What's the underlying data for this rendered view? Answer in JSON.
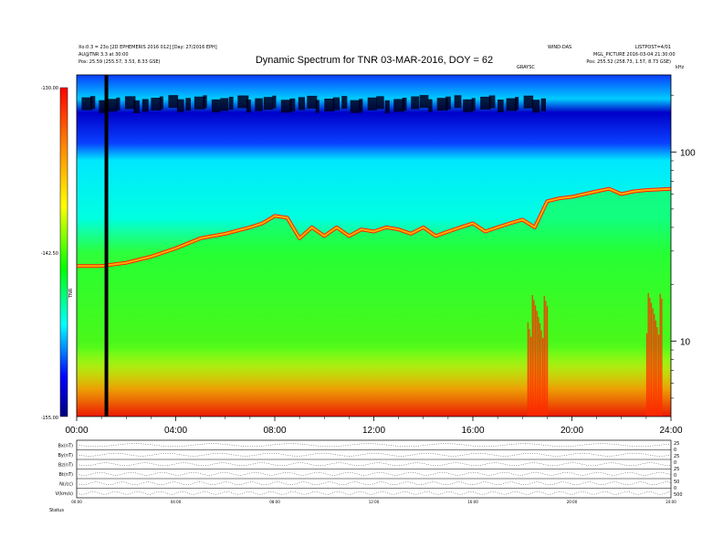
{
  "header": {
    "title": "Dynamic Spectrum for TNR 03-MAR-2016, DOY = 62",
    "left_line1": "Xo:0.3 = 23o [2D EPHEMERIS 2016 012] [Day: 27/2016 EPH]",
    "left_line2": "AU@TNR 3.3 at 30:00",
    "left_line3": "Pos:    25.59 (255.57, 3.53, 8.33 GSE)",
    "right_line1": "WIND-DAS",
    "right_line2": "LISTPOST=4/01",
    "right_line3": "MGL_PICTURE 2016-03-04 21:30:00",
    "right_line4": "Pos:   255.52 (258.73, 1.57, 8.73 GSE)",
    "right_top_label": "GRAYSC",
    "corner_label": "kHz"
  },
  "chart_data": {
    "type": "heatmap",
    "title": "Dynamic Spectrum for TNR 03-MAR-2016, DOY = 62",
    "x_ticks": [
      "00:00",
      "04:00",
      "08:00",
      "12:00",
      "16:00",
      "20:00",
      "24:00"
    ],
    "x_range_hours": [
      0,
      24
    ],
    "y_axis": {
      "scale": "log",
      "unit": "kHz",
      "range": [
        4,
        256
      ],
      "ticks": [
        10,
        100
      ]
    },
    "colorbar": {
      "label": "TNR",
      "range": [
        -155.0,
        -130.0
      ],
      "ticks": [
        "-130.00",
        "-142.50",
        "-155.00"
      ],
      "colors": [
        "#ff0000",
        "#ff8800",
        "#ffff00",
        "#00ff00",
        "#00ffff",
        "#0000ff",
        "#000080"
      ]
    },
    "plasma_line": {
      "description_free": true,
      "time_h": [
        0,
        1,
        2,
        3,
        4,
        5,
        6,
        7,
        7.5,
        8,
        8.5,
        9,
        9.5,
        10,
        10.5,
        11,
        11.5,
        12,
        12.5,
        13,
        13.5,
        14,
        14.5,
        15,
        15.5,
        16,
        16.5,
        17,
        17.5,
        18,
        18.5,
        19,
        19.5,
        20,
        20.5,
        21,
        21.5,
        22,
        22.5,
        23,
        24
      ],
      "freq_khz": [
        25,
        25,
        26,
        28,
        31,
        35,
        37,
        40,
        42,
        46,
        45,
        35,
        40,
        36,
        40,
        36,
        39,
        38,
        40,
        39,
        37,
        40,
        36,
        38,
        40,
        42,
        38,
        40,
        42,
        44,
        40,
        55,
        57,
        58,
        60,
        62,
        64,
        60,
        62,
        63,
        64
      ]
    },
    "data_gap_hour": 1.2
  },
  "panels": {
    "labels": [
      "Bx(nT)",
      "By(nT)",
      "Bz(nT)",
      "Bt(nT)",
      "N(/cc)",
      "V(km/s)"
    ],
    "right_labels": [
      "25",
      "0",
      "25",
      "0",
      "25",
      "0",
      "50",
      "0",
      "500"
    ],
    "bottom_label": "Status"
  }
}
